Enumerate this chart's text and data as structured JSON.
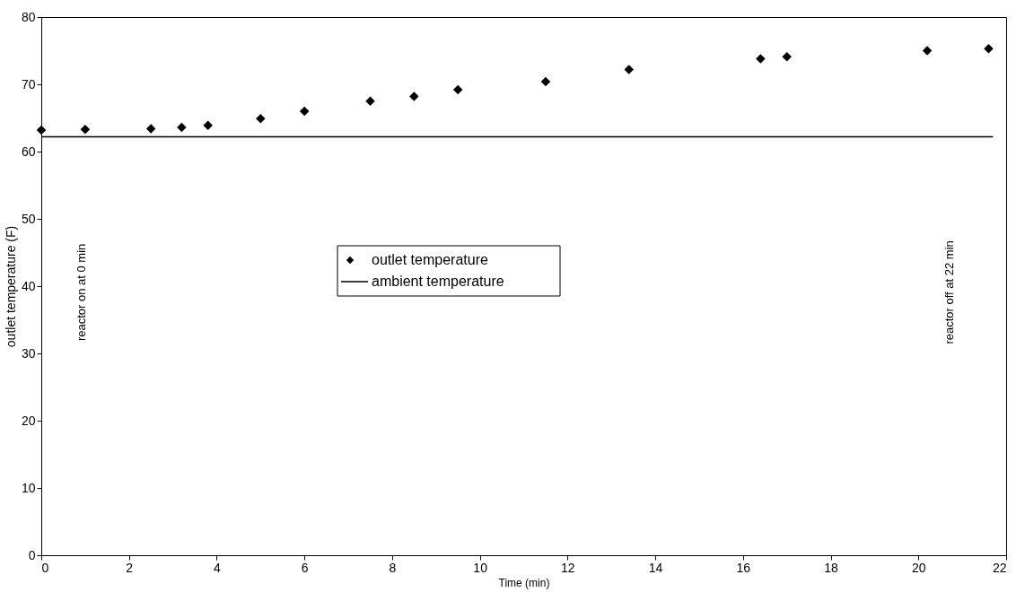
{
  "chart_data": {
    "type": "scatter",
    "xlabel": "Time (min)",
    "ylabel": "outlet temperature (F)",
    "xlim": [
      0,
      22
    ],
    "xticks": [
      0,
      2,
      4,
      6,
      8,
      10,
      12,
      14,
      16,
      18,
      20,
      22
    ],
    "ylim": [
      0,
      80
    ],
    "yticks": [
      0,
      10,
      20,
      30,
      40,
      50,
      60,
      70,
      80
    ],
    "grid": false,
    "legend": "center",
    "series": [
      {
        "name": "outlet temperature",
        "color": "#000000",
        "marker": "diamond",
        "x": [
          0,
          1.0,
          2.5,
          3.2,
          3.8,
          5.0,
          6.0,
          7.5,
          8.5,
          9.5,
          11.5,
          13.4,
          16.4,
          17.0,
          20.2,
          21.6
        ],
        "values": [
          63.2,
          63.3,
          63.4,
          63.6,
          63.9,
          64.9,
          66.0,
          67.5,
          68.2,
          69.2,
          70.4,
          72.2,
          73.8,
          74.1,
          75.0,
          75.3
        ]
      },
      {
        "name": "ambient temperature",
        "type": "line",
        "color": "#000000",
        "line_style": "solid",
        "x": [
          0,
          21.7
        ],
        "values": [
          62.2,
          62.2
        ]
      }
    ],
    "annotations": [
      "reactor on at 0 min",
      "reactor off at 22 min"
    ]
  }
}
